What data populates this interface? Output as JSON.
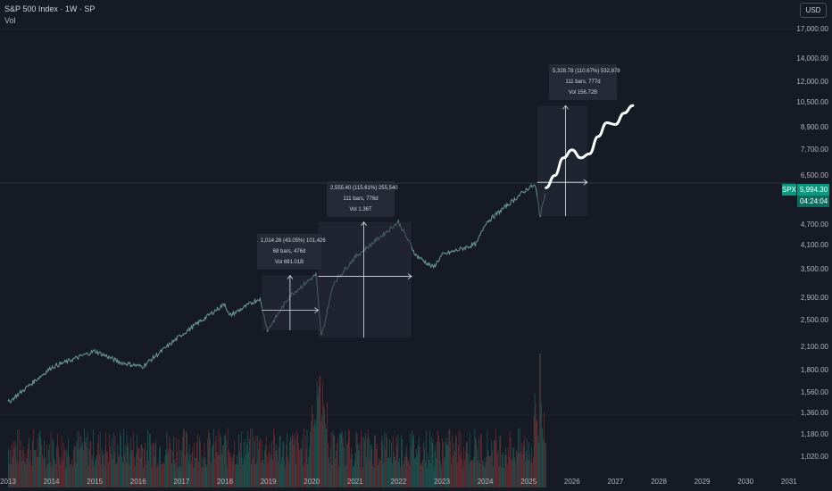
{
  "header": {
    "title": "S&P 500 Index · 1W · SP",
    "indicator": "Vol"
  },
  "currency": "USD",
  "price": {
    "ticker": "SPX",
    "last": "5,994.30",
    "countdown": "04:24:04"
  },
  "colors": {
    "background": "#161a25",
    "up": "#26a69a",
    "down": "#ef5350",
    "accent": "#089981"
  },
  "chart_data": {
    "type": "line",
    "symbol": "S&P 500 Index",
    "interval": "1W",
    "scale": "log",
    "y_ticks": [
      "17,000.00",
      "14,000.00",
      "12,000.00",
      "10,500.00",
      "8,900.00",
      "7,700.00",
      "6,500.00",
      "4,700.00",
      "4,100.00",
      "3,500.00",
      "2,900.00",
      "2,500.00",
      "2,100.00",
      "1,800.00",
      "1,560.00",
      "1,360.00",
      "1,180.00",
      "1,020.00"
    ],
    "x_ticks": [
      "2013",
      "2014",
      "2015",
      "2016",
      "2017",
      "2018",
      "2019",
      "2020",
      "2021",
      "2022",
      "2023",
      "2024",
      "2025",
      "2026",
      "2027",
      "2028",
      "2029",
      "2030",
      "2031"
    ],
    "price_series": {
      "name": "SPX",
      "x": [
        2013.0,
        2014.0,
        2015.0,
        2015.6,
        2016.1,
        2017.0,
        2018.0,
        2018.1,
        2018.8,
        2018.98,
        2019.5,
        2020.1,
        2020.22,
        2020.5,
        2021.0,
        2022.0,
        2022.4,
        2022.8,
        2023.0,
        2023.8,
        2024.0,
        2025.0,
        2025.15,
        2025.27,
        2025.4
      ],
      "y": [
        1460,
        1840,
        2050,
        1900,
        1850,
        2280,
        2800,
        2580,
        2900,
        2350,
        2950,
        3390,
        2237,
        3200,
        3800,
        4790,
        3850,
        3550,
        3850,
        4150,
        4750,
        6000,
        6100,
        4980,
        5994
      ]
    },
    "volume": {
      "name": "Vol",
      "spikes": [
        "2020",
        "2025"
      ]
    },
    "projection": {
      "x": [
        2025.4,
        2025.6,
        2025.8,
        2026.0,
        2026.2,
        2026.4,
        2026.6,
        2026.8,
        2027.0,
        2027.2,
        2027.4
      ],
      "y": [
        6000,
        6500,
        7300,
        7700,
        7300,
        7500,
        8400,
        9200,
        9100,
        9800,
        10300
      ]
    },
    "measurements": [
      {
        "label_1": "1,014.26 (43.05%) 101,426",
        "label_2": "68 bars, 476d",
        "label_3": "Vol 691.01B"
      },
      {
        "label_1": "2,555.40 (115.61%) 255,540",
        "label_2": "111 bars, 776d",
        "label_3": "Vol 1.36T"
      },
      {
        "label_1": "5,328.78 (110.67%) 532,878",
        "label_2": "111 bars, 777d",
        "label_3": "Vol 156.72B"
      }
    ]
  }
}
